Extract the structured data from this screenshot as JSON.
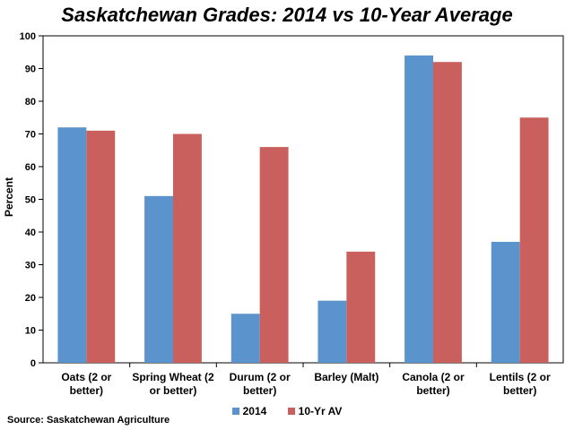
{
  "chart_data": {
    "type": "bar",
    "title": "Saskatchewan Grades: 2014 vs 10-Year Average",
    "ylabel": "Percent",
    "xlabel": "",
    "ylim": [
      0,
      100
    ],
    "yticks": [
      0,
      10,
      20,
      30,
      40,
      50,
      60,
      70,
      80,
      90,
      100
    ],
    "grid": false,
    "legend_position": "bottom",
    "categories": [
      [
        "Oats (2 or",
        "better)"
      ],
      [
        "Spring Wheat (2",
        "or better)"
      ],
      [
        "Durum (2 or",
        "better)"
      ],
      [
        "Barley (Malt)"
      ],
      [
        "Canola (2 or",
        "better)"
      ],
      [
        "Lentils (2 or",
        "better)"
      ]
    ],
    "series": [
      {
        "name": "2014",
        "color": "#5b93cc",
        "values": [
          72,
          51,
          15,
          19,
          94,
          37
        ]
      },
      {
        "name": "10-Yr AV",
        "color": "#c9605d",
        "values": [
          71,
          70,
          66,
          34,
          92,
          75
        ]
      }
    ]
  },
  "source": "Source: Saskatchewan Agriculture"
}
